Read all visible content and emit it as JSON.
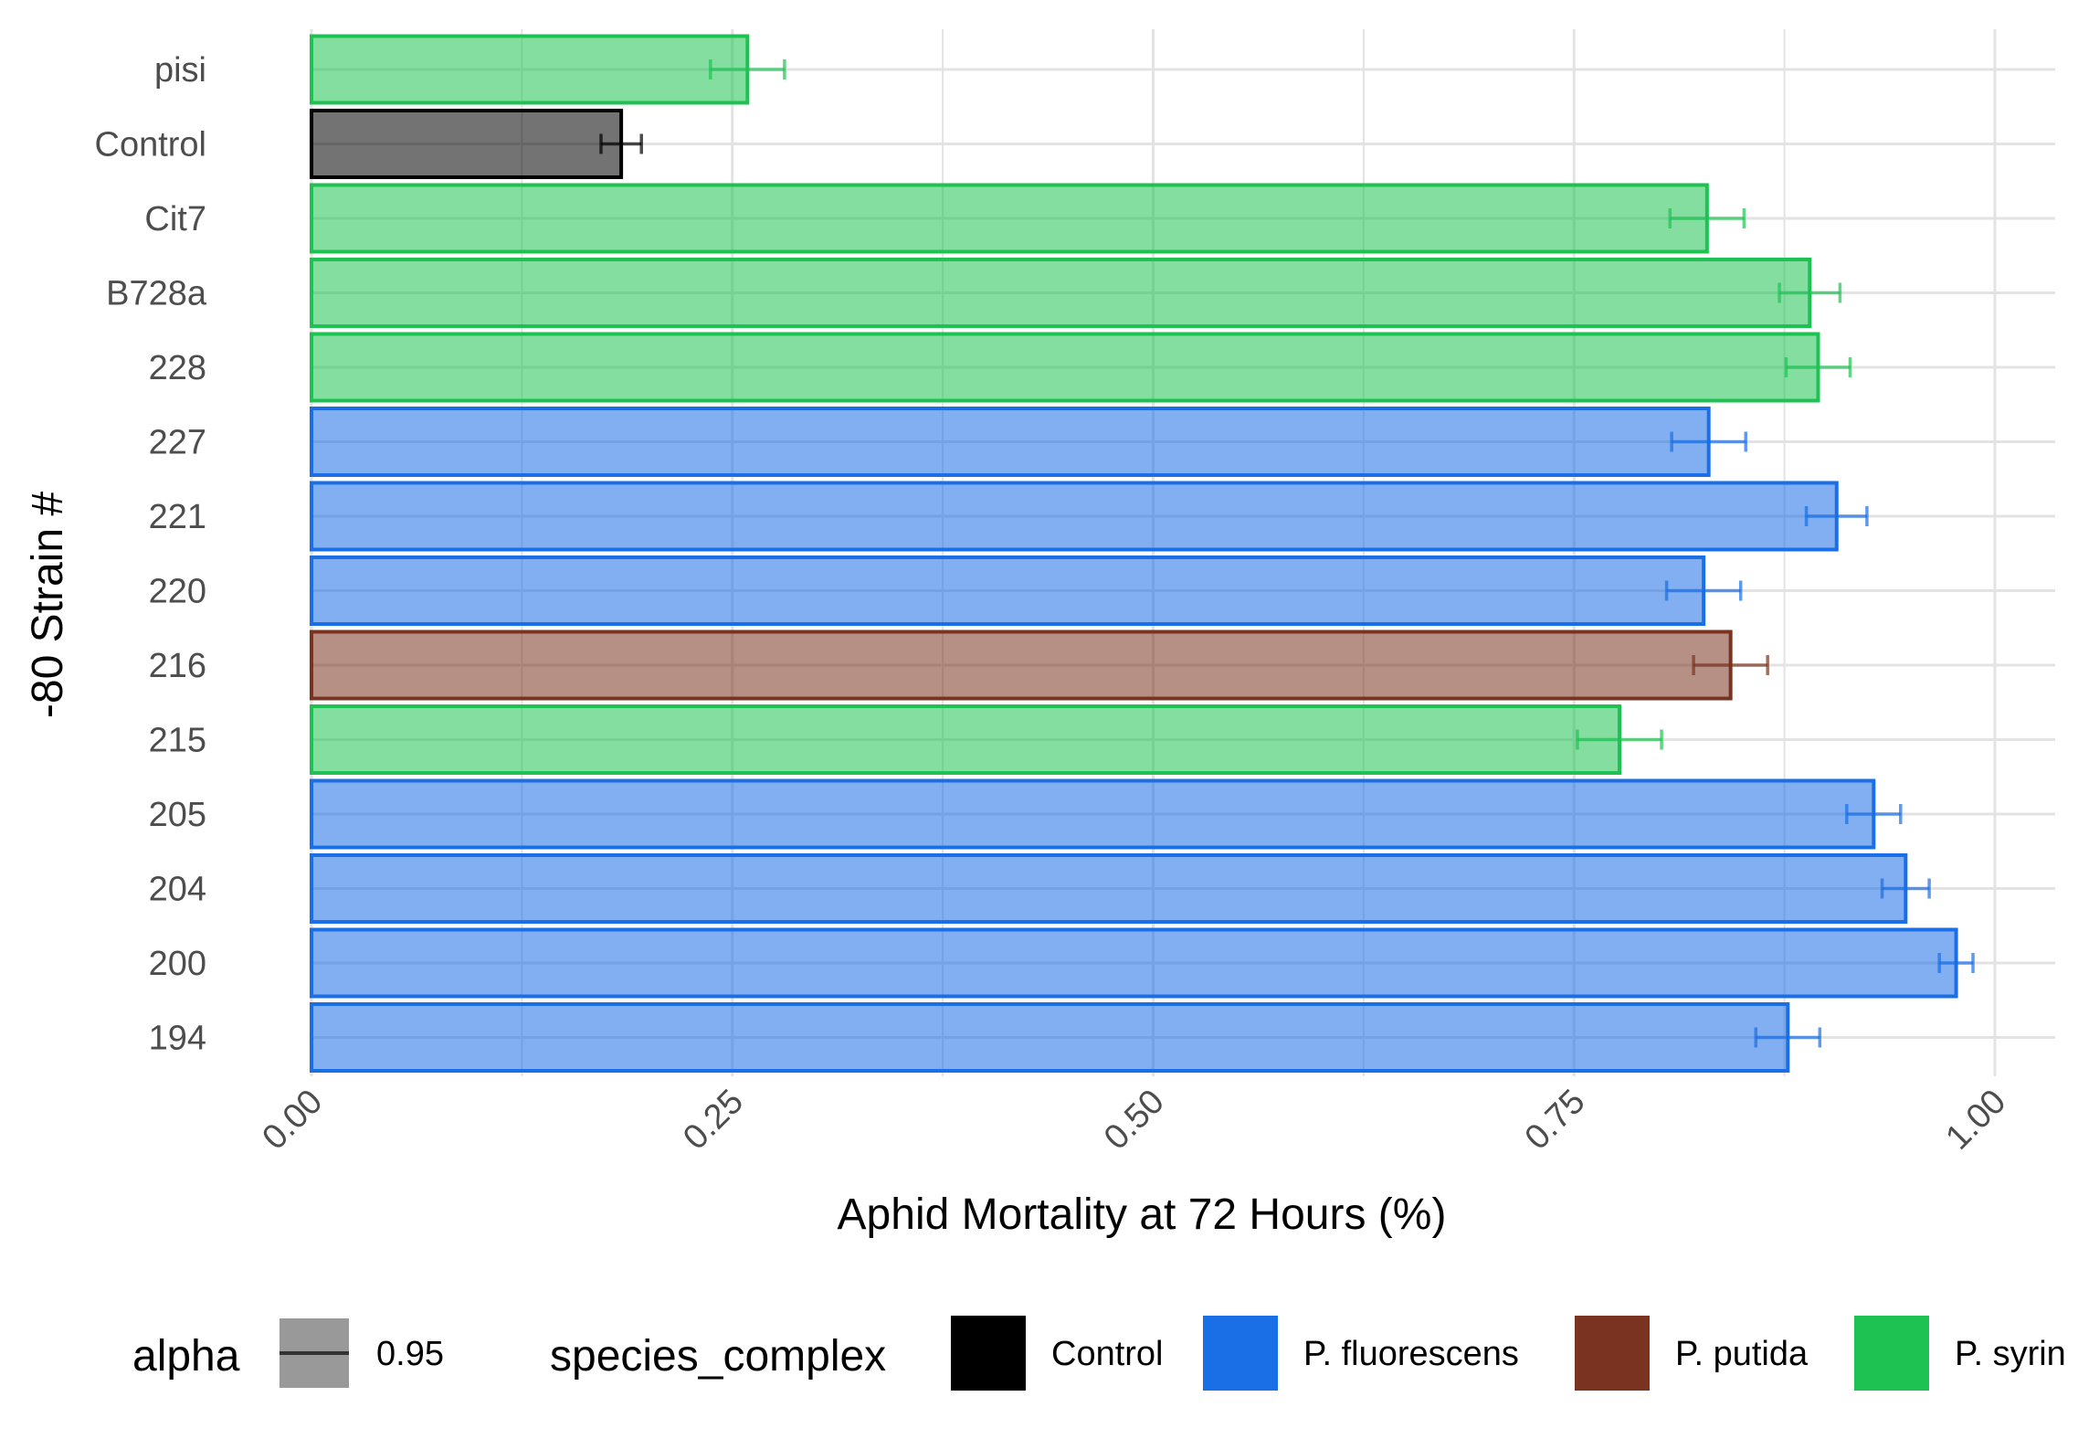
{
  "chart_data": {
    "type": "bar",
    "orientation": "horizontal",
    "title": "",
    "xlabel": "Aphid Mortality at 72 Hours (%)",
    "ylabel": "-80 Strain #",
    "xlim": [
      0,
      1
    ],
    "x_ticks": [
      "0.00",
      "0.25",
      "0.50",
      "0.75",
      "1.00"
    ],
    "grid": true,
    "legend_position": "bottom",
    "categories": [
      "pisi",
      "Control",
      "Cit7",
      "B728a",
      "228",
      "227",
      "221",
      "220",
      "216",
      "215",
      "205",
      "204",
      "200",
      "194"
    ],
    "values": [
      0.259,
      0.184,
      0.829,
      0.89,
      0.895,
      0.83,
      0.906,
      0.827,
      0.843,
      0.777,
      0.928,
      0.947,
      0.977,
      0.877
    ],
    "errors": [
      0.022,
      0.012,
      0.022,
      0.018,
      0.019,
      0.022,
      0.018,
      0.022,
      0.022,
      0.025,
      0.016,
      0.014,
      0.01,
      0.019
    ],
    "groups": [
      "P. syringae",
      "Control",
      "P. syringae",
      "P. syringae",
      "P. syringae",
      "P. fluorescens",
      "P. fluorescens",
      "P. fluorescens",
      "P. putida",
      "P. syringae",
      "P. fluorescens",
      "P. fluorescens",
      "P. fluorescens",
      "P. fluorescens"
    ],
    "group_colors": {
      "Control": "#000000",
      "P. fluorescens": "#1a6ee6",
      "P. putida": "#7a3320",
      "P. syringae": "#1ec252"
    },
    "legend": {
      "alpha_title": "alpha",
      "alpha_value": "0.95",
      "fill_title": "species_complex",
      "entries": [
        {
          "label": "Control",
          "color": "#000000"
        },
        {
          "label": "P. fluorescens",
          "color": "#1a6ee6"
        },
        {
          "label": "P. putida",
          "color": "#7a3320"
        },
        {
          "label": "P. syrin",
          "color": "#1ec252"
        }
      ]
    }
  }
}
